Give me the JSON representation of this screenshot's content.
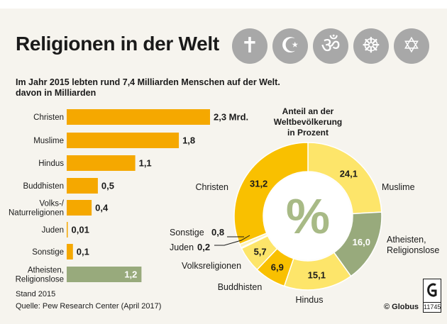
{
  "header": {
    "title": "Religionen in der Welt",
    "subtitle_line1": "Im Jahr 2015 lebten rund 7,4 Milliarden Menschen auf der Welt.",
    "subtitle_line2": "davon in Milliarden",
    "symbols": [
      {
        "name": "cross-icon",
        "glyph": "✝"
      },
      {
        "name": "crescent-star-icon",
        "glyph": "☪"
      },
      {
        "name": "om-icon",
        "glyph": "ॐ"
      },
      {
        "name": "dharma-wheel-icon",
        "glyph": "☸"
      },
      {
        "name": "star-of-david-icon",
        "glyph": "✡"
      }
    ]
  },
  "colors": {
    "bar_orange": "#f5a800",
    "bar_green": "#98aa7c",
    "donut_dark_yellow": "#f9c000",
    "donut_light_yellow": "#fde56a",
    "donut_green": "#98aa7c",
    "donut_pale": "#fdf3b8"
  },
  "chart_data": [
    {
      "type": "bar",
      "orientation": "horizontal",
      "unit": "Milliarden",
      "categories": [
        "Christen",
        "Muslime",
        "Hindus",
        "Buddhisten",
        "Volks-/\nNaturreligionen",
        "Juden",
        "Sonstige",
        "Atheisten,\nReligionslose"
      ],
      "values": [
        2.3,
        1.8,
        1.1,
        0.5,
        0.4,
        0.01,
        0.1,
        1.2
      ],
      "value_labels": [
        "2,3 Mrd.",
        "1,8",
        "1,1",
        "0,5",
        "0,4",
        "0,01",
        "0,1",
        "1,2"
      ],
      "highlight_category": "Atheisten,\nReligionslose"
    },
    {
      "type": "pie",
      "variant": "donut",
      "title": "Anteil an der\nWeltbevölkerung\nin Prozent",
      "center_symbol": "%",
      "slices": [
        {
          "label": "Muslime",
          "value": 24.1,
          "value_label": "24,1",
          "color": "#fde56a"
        },
        {
          "label": "Atheisten,\nReligionslose",
          "value": 16.0,
          "value_label": "16,0",
          "color": "#98aa7c"
        },
        {
          "label": "Hindus",
          "value": 15.1,
          "value_label": "15,1",
          "color": "#fde56a"
        },
        {
          "label": "Buddhisten",
          "value": 6.9,
          "value_label": "6,9",
          "color": "#f9c000"
        },
        {
          "label": "Volksreligionen",
          "value": 5.7,
          "value_label": "5,7",
          "color": "#fde56a"
        },
        {
          "label": "Juden",
          "value": 0.2,
          "value_label": "0,2",
          "color": "#ffffff"
        },
        {
          "label": "Sonstige",
          "value": 0.8,
          "value_label": "0,8",
          "color": "#fdf3b8"
        },
        {
          "label": "Christen",
          "value": 31.2,
          "value_label": "31,2",
          "color": "#f9c000"
        }
      ]
    }
  ],
  "footer": {
    "stand": "Stand 2015",
    "source": "Quelle: Pew Research Center (April 2017)",
    "publisher": "© Globus",
    "logo_letter": "G",
    "graphic_number": "11745"
  }
}
